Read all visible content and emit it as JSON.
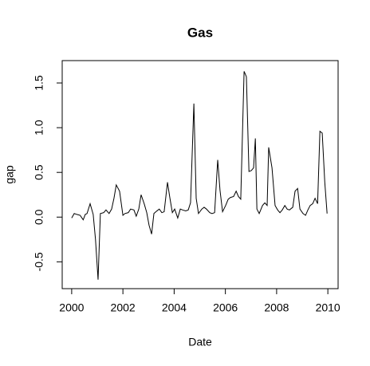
{
  "chart_data": {
    "type": "line",
    "title": "Gas",
    "x_label": "Date",
    "y_label": "gap",
    "color": "#000000",
    "x": [
      2000.0,
      2000.1,
      2000.2,
      2000.33,
      2000.45,
      2000.53,
      2000.6,
      2000.72,
      2000.84,
      2000.93,
      2001.03,
      2001.12,
      2001.25,
      2001.34,
      2001.46,
      2001.56,
      2001.65,
      2001.74,
      2001.87,
      2002.0,
      2002.08,
      2002.21,
      2002.3,
      2002.43,
      2002.52,
      2002.62,
      2002.71,
      2002.83,
      2002.93,
      2003.02,
      2003.12,
      2003.21,
      2003.33,
      2003.42,
      2003.52,
      2003.61,
      2003.74,
      2003.83,
      2003.93,
      2004.02,
      2004.14,
      2004.24,
      2004.33,
      2004.45,
      2004.55,
      2004.64,
      2004.77,
      2004.86,
      2004.95,
      2005.08,
      2005.17,
      2005.26,
      2005.39,
      2005.48,
      2005.58,
      2005.7,
      2005.79,
      2005.89,
      2006.01,
      2006.11,
      2006.2,
      2006.32,
      2006.42,
      2006.51,
      2006.6,
      2006.73,
      2006.82,
      2006.92,
      2007.01,
      2007.1,
      2007.17,
      2007.23,
      2007.32,
      2007.45,
      2007.54,
      2007.63,
      2007.69,
      2007.82,
      2007.94,
      2008.04,
      2008.13,
      2008.22,
      2008.32,
      2008.41,
      2008.5,
      2008.63,
      2008.72,
      2008.82,
      2008.91,
      2009.03,
      2009.13,
      2009.22,
      2009.31,
      2009.41,
      2009.5,
      2009.6,
      2009.69,
      2009.78,
      2009.88,
      2009.97
    ],
    "values": [
      -0.01,
      0.04,
      0.03,
      0.02,
      -0.03,
      0.03,
      0.04,
      0.15,
      0.03,
      -0.25,
      -0.7,
      0.04,
      0.05,
      0.08,
      0.04,
      0.09,
      0.21,
      0.36,
      0.29,
      0.02,
      0.04,
      0.05,
      0.09,
      0.08,
      0.01,
      0.09,
      0.25,
      0.15,
      0.05,
      -0.09,
      -0.19,
      0.04,
      0.07,
      0.09,
      0.05,
      0.06,
      0.39,
      0.22,
      0.05,
      0.09,
      -0.01,
      0.09,
      0.08,
      0.07,
      0.08,
      0.16,
      1.27,
      0.21,
      0.04,
      0.09,
      0.11,
      0.09,
      0.05,
      0.04,
      0.05,
      0.64,
      0.3,
      0.06,
      0.13,
      0.2,
      0.22,
      0.23,
      0.29,
      0.23,
      0.2,
      1.63,
      1.57,
      0.51,
      0.52,
      0.55,
      0.88,
      0.09,
      0.04,
      0.13,
      0.16,
      0.13,
      0.78,
      0.55,
      0.13,
      0.08,
      0.05,
      0.08,
      0.13,
      0.09,
      0.08,
      0.11,
      0.29,
      0.32,
      0.09,
      0.04,
      0.02,
      0.08,
      0.13,
      0.15,
      0.21,
      0.15,
      0.96,
      0.94,
      0.39,
      0.04
    ],
    "xlim": [
      1999.63,
      2010.4
    ],
    "xticks": [
      2000,
      2002,
      2004,
      2006,
      2008,
      2010
    ],
    "ylim": [
      -0.8,
      1.75
    ],
    "yticks": [
      -0.5,
      {
        "value": 0,
        "label": "0.0"
      },
      {
        "value": 0.5,
        "label": "0.5"
      },
      {
        "value": 1,
        "label": "1.0"
      },
      1.5
    ]
  }
}
